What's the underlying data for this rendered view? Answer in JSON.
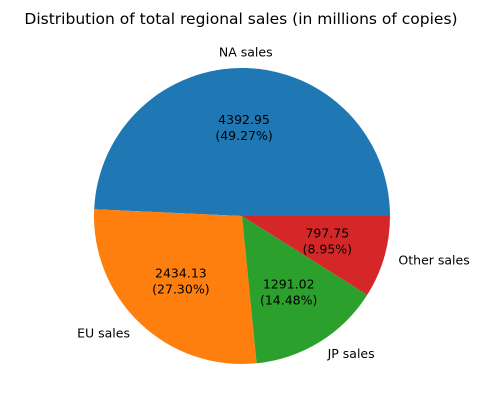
{
  "chart_data": {
    "type": "pie",
    "title": "Distribution of total regional sales (in millions of copies)",
    "slices": [
      {
        "label": "NA sales",
        "value": 4392.95,
        "percent": "49.27%",
        "color": "#1f77b4"
      },
      {
        "label": "EU sales",
        "value": 2434.13,
        "percent": "27.30%",
        "color": "#ff7f0e"
      },
      {
        "label": "JP sales",
        "value": 1291.02,
        "percent": "14.48%",
        "color": "#2ca02c"
      },
      {
        "label": "Other sales",
        "value": 797.75,
        "percent": "8.95%",
        "color": "#d62728"
      }
    ],
    "start_angle_deg": 0,
    "direction": "counterclockwise",
    "legend": "none"
  }
}
